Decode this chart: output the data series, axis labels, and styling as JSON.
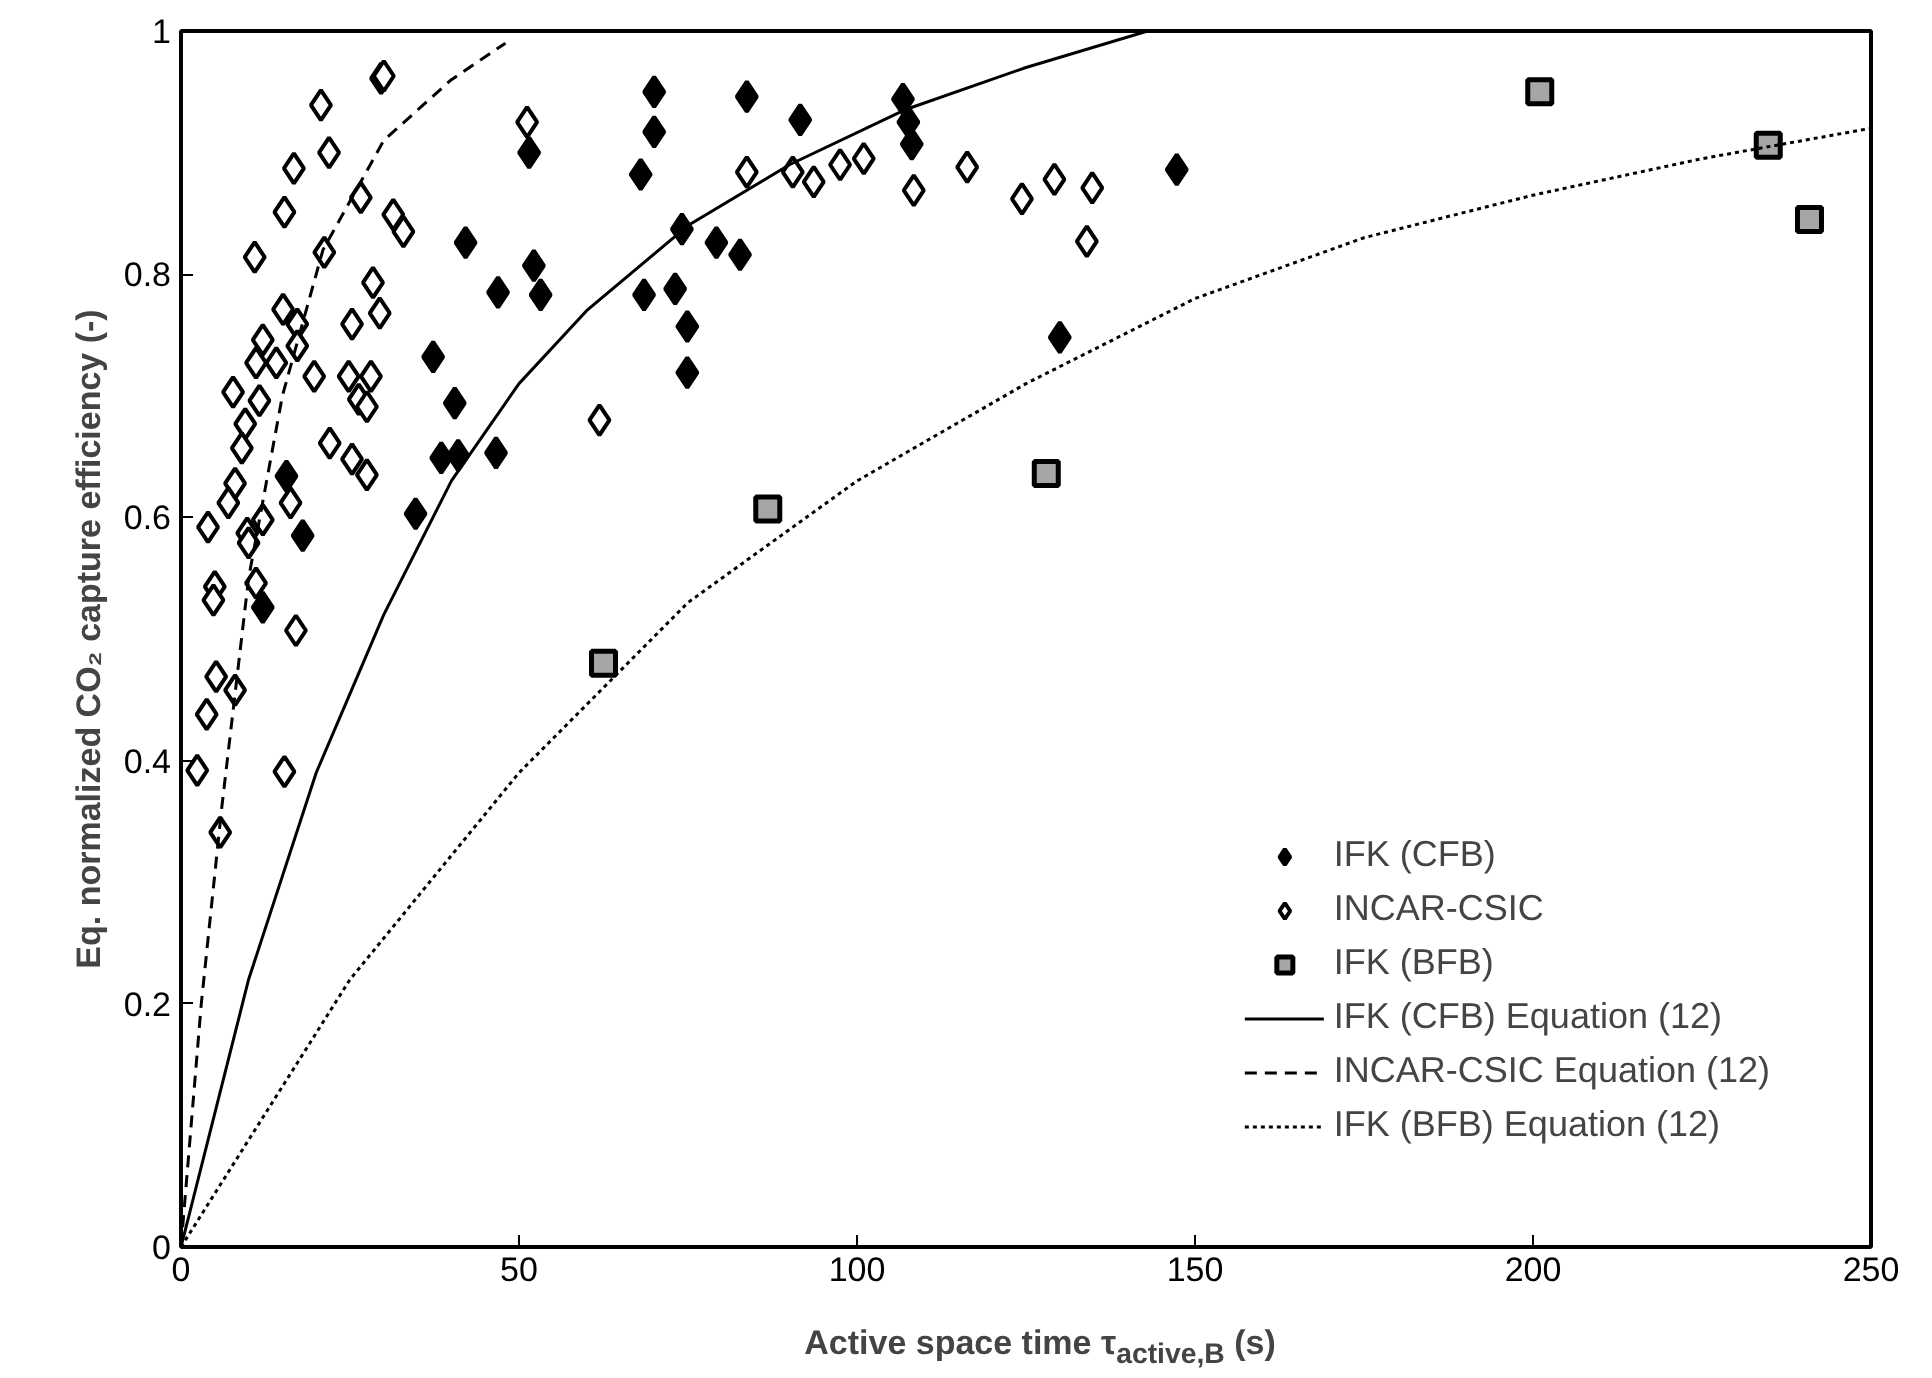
{
  "chart_data": {
    "type": "scatter",
    "xlabel": "Active space time τ$_{active,B}$ (s)",
    "ylabel": "Eq. normalized CO₂ capture efficiency (-)",
    "xlim": [
      0,
      250
    ],
    "ylim": [
      0,
      1
    ],
    "xticks": [
      0,
      50,
      100,
      150,
      200,
      250
    ],
    "yticks": [
      0,
      0.2,
      0.4,
      0.6,
      0.8,
      1
    ],
    "grid": false,
    "legend": "bottom right",
    "series": [
      {
        "name": "IFK (CFB)",
        "marker": "diamond",
        "color": "#000000",
        "x": [
          70,
          70,
          68,
          83.7,
          91.6,
          106.8,
          107.6,
          108.1,
          147.3,
          74.1,
          79.2,
          82.7,
          52.2,
          53.2,
          68.5,
          73.1,
          74.9,
          74.9,
          130,
          51.5,
          42.1,
          46.9,
          37.3,
          40.5,
          38.5,
          41,
          46.6,
          34.7,
          15.6,
          18,
          12.1
        ],
        "values": [
          0.95,
          0.917,
          0.882,
          0.946,
          0.927,
          0.944,
          0.925,
          0.907,
          0.886,
          0.837,
          0.826,
          0.816,
          0.807,
          0.783,
          0.783,
          0.788,
          0.757,
          0.719,
          0.748,
          0.9,
          0.826,
          0.785,
          0.732,
          0.694,
          0.649,
          0.651,
          0.653,
          0.603,
          0.634,
          0.585,
          0.526
        ]
      },
      {
        "name": "INCAR-CSIC",
        "marker": "diamond",
        "color": "#ffffff",
        "x": [
          51.2,
          83.7,
          90.5,
          93.6,
          97.5,
          101,
          108.4,
          116.3,
          124.4,
          129.2,
          134.8,
          134,
          61.9,
          29.6,
          30,
          20.7,
          21.9,
          16.7,
          15.3,
          26.6,
          31.4,
          32.9,
          10.9,
          21.2,
          28.4,
          29.4,
          25.3,
          15.1,
          17.2,
          12.1,
          17.2,
          11.1,
          14.1,
          19.7,
          24.8,
          28.1,
          26.3,
          27.5,
          7.7,
          11.6,
          9.5,
          9,
          22,
          25.3,
          27.5,
          8,
          7,
          16.2,
          4,
          9.8,
          12.1,
          10,
          5,
          4.8,
          11.1,
          17,
          5.2,
          8,
          3.8,
          2.4,
          15.3,
          5.8
        ],
        "values": [
          0.925,
          0.884,
          0.884,
          0.876,
          0.89,
          0.895,
          0.869,
          0.888,
          0.862,
          0.878,
          0.871,
          0.827,
          0.68,
          0.961,
          0.963,
          0.939,
          0.9,
          0.887,
          0.851,
          0.863,
          0.849,
          0.835,
          0.814,
          0.818,
          0.793,
          0.768,
          0.759,
          0.771,
          0.759,
          0.746,
          0.741,
          0.727,
          0.727,
          0.716,
          0.716,
          0.716,
          0.697,
          0.691,
          0.703,
          0.696,
          0.677,
          0.657,
          0.661,
          0.648,
          0.635,
          0.628,
          0.612,
          0.612,
          0.592,
          0.587,
          0.598,
          0.579,
          0.543,
          0.532,
          0.546,
          0.507,
          0.469,
          0.458,
          0.438,
          0.392,
          0.391,
          0.341
        ]
      },
      {
        "name": "IFK (BFB)",
        "marker": "square",
        "color": "#a6a6a6",
        "x": [
          62.5,
          86.8,
          128,
          201,
          234.8,
          240.9
        ],
        "values": [
          0.48,
          0.607,
          0.636,
          0.95,
          0.906,
          0.845
        ]
      },
      {
        "name": "IFK (CFB) Equation (12)",
        "type": "line",
        "line_style": "solid",
        "color": "#000000",
        "x": [
          0,
          10,
          20,
          30,
          40,
          50,
          60,
          75,
          90,
          107,
          125,
          143
        ],
        "values": [
          0,
          0.22,
          0.39,
          0.52,
          0.63,
          0.71,
          0.77,
          0.84,
          0.89,
          0.935,
          0.97,
          1
        ]
      },
      {
        "name": "INCAR-CSIC Equation (12)",
        "type": "line",
        "line_style": "dashed",
        "color": "#000000",
        "x": [
          0,
          3,
          6,
          10,
          15,
          21,
          30,
          40,
          48
        ],
        "values": [
          0,
          0.2,
          0.36,
          0.55,
          0.7,
          0.82,
          0.91,
          0.96,
          0.99
        ]
      },
      {
        "name": "IFK (BFB) Equation (12)",
        "type": "line",
        "line_style": "dotted",
        "color": "#000000",
        "x": [
          0,
          25,
          50,
          75,
          100,
          125,
          150,
          175,
          200,
          225,
          250
        ],
        "values": [
          0,
          0.22,
          0.39,
          0.53,
          0.63,
          0.71,
          0.78,
          0.83,
          0.865,
          0.895,
          0.92
        ]
      }
    ]
  }
}
